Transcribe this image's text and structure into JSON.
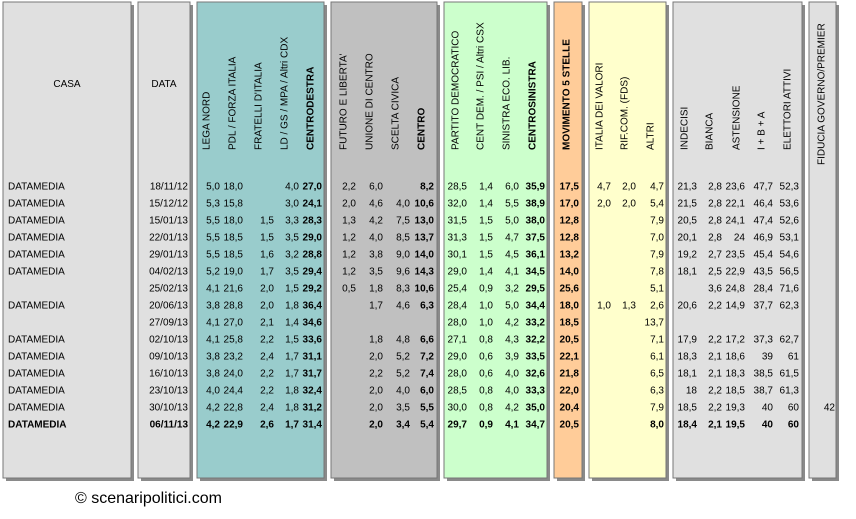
{
  "table": {
    "header": [
      "CASA",
      "DATA",
      "LEGA NORD",
      "PDL / FORZA ITALIA",
      "FRATELLI D'ITALIA",
      "LD / GS / MPA / Altri CDX",
      "CENTRODESTRA",
      "FUTURO E LIBERTA'",
      "UNIONE DI CENTRO",
      "SCELTA CIVICA",
      "CENTRO",
      "PARTITO DEMOCRATICO",
      "CENT DEM. / PSI / Altri CSX",
      "SINISTRA ECO. LIB.",
      "CENTROSINISTRA",
      "MOVIMENTO 5 STELLE",
      "ITALIA DEI VALORI",
      "RIF.COM. (FDS)",
      "ALTRI",
      "INDECISI",
      "BIANCA",
      "ASTENSIONE",
      "I + B + A",
      "ELETTORI ATTIVI",
      "FIDUCIA GOVERNO/PREMIER"
    ],
    "rows": [
      [
        "DATAMEDIA",
        "18/11/12",
        "5,0",
        "18,0",
        null,
        "4,0",
        "27,0",
        "2,2",
        "6,0",
        null,
        "8,2",
        "28,5",
        "1,4",
        "6,0",
        "35,9",
        "17,5",
        "4,7",
        "2,0",
        "4,7",
        "21,3",
        "2,8",
        "23,6",
        "47,7",
        "52,3",
        null
      ],
      [
        "DATAMEDIA",
        "15/12/12",
        "5,3",
        "15,8",
        null,
        "3,0",
        "24,1",
        "2,0",
        "4,6",
        "4,0",
        "10,6",
        "32,0",
        "1,4",
        "5,5",
        "38,9",
        "17,0",
        "2,0",
        "2,0",
        "5,4",
        "21,5",
        "2,8",
        "22,1",
        "46,4",
        "53,6",
        null
      ],
      [
        "DATAMEDIA",
        "15/01/13",
        "5,5",
        "18,0",
        "1,5",
        "3,3",
        "28,3",
        "1,3",
        "4,2",
        "7,5",
        "13,0",
        "31,5",
        "1,5",
        "5,0",
        "38,0",
        "12,8",
        null,
        null,
        "7,9",
        "20,5",
        "2,8",
        "24,1",
        "47,4",
        "52,6",
        null
      ],
      [
        "DATAMEDIA",
        "22/01/13",
        "5,5",
        "18,5",
        "1,5",
        "3,5",
        "29,0",
        "1,2",
        "4,0",
        "8,5",
        "13,7",
        "31,3",
        "1,5",
        "4,7",
        "37,5",
        "12,8",
        null,
        null,
        "7,0",
        "20,1",
        "2,8",
        "24",
        "46,9",
        "53,1",
        null
      ],
      [
        "DATAMEDIA",
        "29/01/13",
        "5,5",
        "18,5",
        "1,6",
        "3,2",
        "28,8",
        "1,2",
        "3,8",
        "9,0",
        "14,0",
        "30,1",
        "1,5",
        "4,5",
        "36,1",
        "13,2",
        null,
        null,
        "7,9",
        "19,2",
        "2,7",
        "23,5",
        "45,4",
        "54,6",
        null
      ],
      [
        "DATAMEDIA",
        "04/02/13",
        "5,2",
        "19,0",
        "1,7",
        "3,5",
        "29,4",
        "1,2",
        "3,5",
        "9,6",
        "14,3",
        "29,0",
        "1,4",
        "4,1",
        "34,5",
        "14,0",
        null,
        null,
        "7,8",
        "18,1",
        "2,5",
        "22,9",
        "43,5",
        "56,5",
        null
      ],
      [
        null,
        "25/02/13",
        "4,1",
        "21,6",
        "2,0",
        "1,5",
        "29,2",
        "0,5",
        "1,8",
        "8,3",
        "10,6",
        "25,4",
        "0,9",
        "3,2",
        "29,5",
        "25,6",
        null,
        null,
        "5,1",
        null,
        "3,6",
        "24,8",
        "28,4",
        "71,6",
        null
      ],
      [
        "DATAMEDIA",
        "20/06/13",
        "3,8",
        "28,8",
        "2,0",
        "1,8",
        "36,4",
        null,
        "1,7",
        "4,6",
        "6,3",
        "28,4",
        "1,0",
        "5,0",
        "34,4",
        "18,0",
        "1,0",
        "1,3",
        "2,6",
        "20,6",
        "2,2",
        "14,9",
        "37,7",
        "62,3",
        null
      ],
      [
        null,
        "27/09/13",
        "4,1",
        "27,0",
        "2,1",
        "1,4",
        "34,6",
        null,
        null,
        null,
        null,
        "28,0",
        "1,0",
        "4,2",
        "33,2",
        "18,5",
        null,
        null,
        "13,7",
        null,
        null,
        null,
        null,
        null,
        null
      ],
      [
        "DATAMEDIA",
        "02/10/13",
        "4,1",
        "25,8",
        "2,2",
        "1,5",
        "33,6",
        null,
        "1,8",
        "4,8",
        "6,6",
        "27,1",
        "0,8",
        "4,3",
        "32,2",
        "20,5",
        null,
        null,
        "7,1",
        "17,9",
        "2,2",
        "17,2",
        "37,3",
        "62,7",
        null
      ],
      [
        "DATAMEDIA",
        "09/10/13",
        "3,8",
        "23,2",
        "2,4",
        "1,7",
        "31,1",
        null,
        "2,0",
        "5,2",
        "7,2",
        "29,0",
        "0,6",
        "3,9",
        "33,5",
        "22,1",
        null,
        null,
        "6,1",
        "18,3",
        "2,1",
        "18,6",
        "39",
        "61",
        null
      ],
      [
        "DATAMEDIA",
        "16/10/13",
        "3,8",
        "24,0",
        "2,2",
        "1,7",
        "31,7",
        null,
        "2,2",
        "5,2",
        "7,4",
        "28,0",
        "0,6",
        "4,0",
        "32,6",
        "21,8",
        null,
        null,
        "6,5",
        "18,1",
        "2,1",
        "18,3",
        "38,5",
        "61,5",
        null
      ],
      [
        "DATAMEDIA",
        "23/10/13",
        "4,0",
        "24,4",
        "2,2",
        "1,8",
        "32,4",
        null,
        "2,0",
        "4,0",
        "6,0",
        "28,5",
        "0,8",
        "4,0",
        "33,3",
        "22,0",
        null,
        null,
        "6,3",
        "18",
        "2,2",
        "18,5",
        "38,7",
        "61,3",
        null
      ],
      [
        "DATAMEDIA",
        "30/10/13",
        "4,2",
        "22,8",
        "2,4",
        "1,8",
        "31,2",
        null,
        "2,0",
        "3,5",
        "5,5",
        "30,0",
        "0,8",
        "4,2",
        "35,0",
        "20,4",
        null,
        null,
        "7,9",
        "18,5",
        "2,2",
        "19,3",
        "40",
        "60",
        "42"
      ],
      [
        "DATAMEDIA",
        "06/11/13",
        "4,2",
        "22,9",
        "2,6",
        "1,7",
        "31,4",
        null,
        "2,0",
        "3,4",
        "5,4",
        "29,7",
        "0,9",
        "4,1",
        "34,7",
        "20,5",
        null,
        null,
        "8,0",
        "18,4",
        "2,1",
        "19,5",
        "40",
        "60",
        null
      ]
    ]
  },
  "footer": "© scenaripolitici.com"
}
